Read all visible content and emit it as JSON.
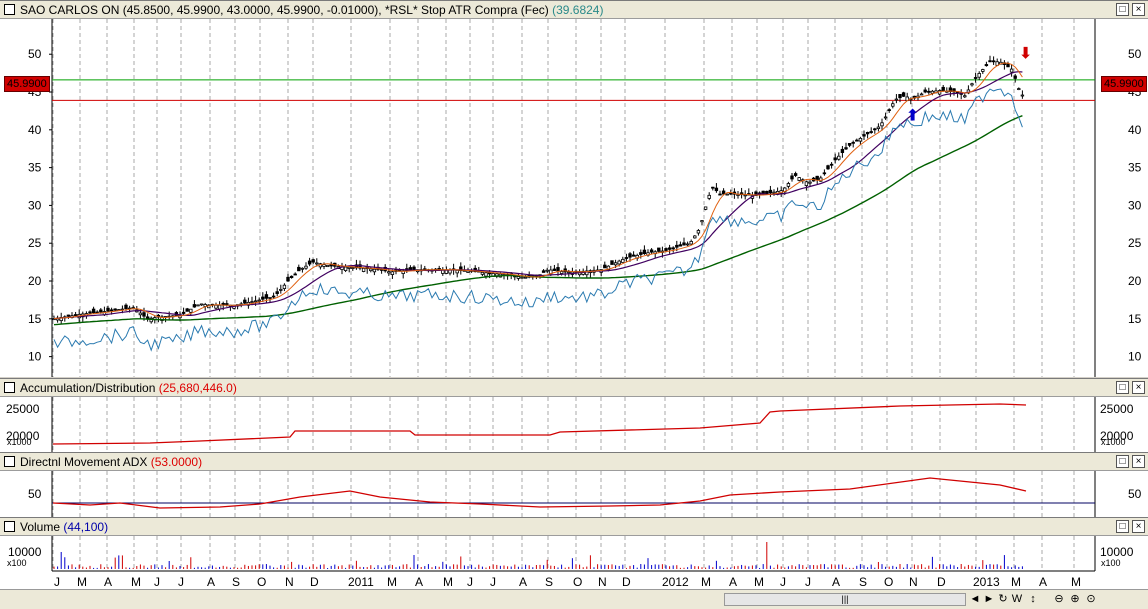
{
  "panes": {
    "price": {
      "title": "SAO CARLOS ON",
      "ohlc": "(45.8500, 45.9900, 43.0000, 45.9900, -0.01000),",
      "indicator": "*RSL* Stop ATR Compra (Fec)",
      "indicator_value": "(39.6824)",
      "last_price_tag": "45.9900",
      "y_ticks": [
        "50",
        "45",
        "40",
        "35",
        "30",
        "25",
        "20",
        "15",
        "10"
      ]
    },
    "accdist": {
      "title": "Accumulation/Distribution",
      "value": "(25,680,446.0)",
      "y_ticks": [
        "25000",
        "20000"
      ],
      "multiplier": "x1000"
    },
    "adx": {
      "title": "Directnl Movement ADX",
      "value": "(53.0000)",
      "y_ticks": [
        "50"
      ]
    },
    "volume": {
      "title": "Volume",
      "value": "(44,100)",
      "y_ticks": [
        "10000"
      ],
      "multiplier": "x100"
    }
  },
  "x_labels": [
    "J",
    "M",
    "A",
    "M",
    "J",
    "J",
    "A",
    "S",
    "O",
    "N",
    "D",
    "2011",
    "M",
    "A",
    "M",
    "J",
    "J",
    "A",
    "S",
    "O",
    "N",
    "D",
    "2012",
    "M",
    "A",
    "M",
    "J",
    "J",
    "A",
    "S",
    "O",
    "N",
    "D",
    "2013",
    "M",
    "A",
    "M"
  ],
  "window_buttons": {
    "restore": "□",
    "close": "×"
  },
  "toolbar": {
    "scroll_grip": "|||",
    "buttons": [
      "◄",
      "►",
      "↻",
      "W",
      "↕",
      "⊖",
      "⊕",
      "⊙"
    ]
  },
  "colors": {
    "candles": "#000000",
    "ma_short": "#e06010",
    "ma_mid": "#400060",
    "ma_long": "#006000",
    "stop_line": "#2a7ab0",
    "hline_green": "#00a000",
    "hline_red": "#d00000",
    "accent_red": "#d00000",
    "accent_blue": "#0000cc"
  }
}
